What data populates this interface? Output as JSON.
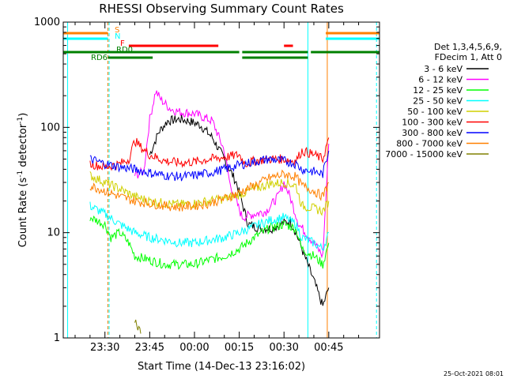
{
  "chart_data": {
    "type": "line",
    "title": "RHESSI Observing Summary Count Rates",
    "xlabel": "Start Time (14-Dec-13 23:16:02)",
    "ylabel_main": "Count Rate (s",
    "ylabel_sup1": "-1",
    "ylabel_mid": " detector",
    "ylabel_sup2": "-1",
    "ylabel_end": ")",
    "y_scale": "log",
    "ylim": [
      1,
      1000
    ],
    "y_ticks": [
      {
        "value": 1,
        "label": "1"
      },
      {
        "value": 10,
        "label": "10"
      },
      {
        "value": 100,
        "label": "100"
      },
      {
        "value": 1000,
        "label": "1000"
      }
    ],
    "x_ticks": [
      {
        "minute": 30,
        "label": "23:30"
      },
      {
        "minute": 45,
        "label": "23:45"
      },
      {
        "minute": 60,
        "label": "00:00"
      },
      {
        "minute": 75,
        "label": "00:15"
      },
      {
        "minute": 90,
        "label": "00:30"
      },
      {
        "minute": 105,
        "label": "00:45"
      }
    ],
    "xlim_minutes": [
      16.03,
      122
    ],
    "legend_header": [
      "Det 1,3,4,5,6,9,",
      "FDecim 1, Att 0"
    ],
    "series": [
      {
        "name": "3 - 6 keV",
        "color": "#000000",
        "points": [
          [
            38,
            0
          ],
          [
            42,
            0
          ],
          [
            45,
            55
          ],
          [
            48,
            90
          ],
          [
            51,
            115
          ],
          [
            55,
            120
          ],
          [
            58,
            115
          ],
          [
            62,
            105
          ],
          [
            66,
            80
          ],
          [
            70,
            50
          ],
          [
            74,
            30
          ],
          [
            78,
            12
          ],
          [
            82,
            11
          ],
          [
            86,
            11
          ],
          [
            89,
            12
          ],
          [
            92,
            13
          ],
          [
            94,
            10
          ],
          [
            96,
            7
          ],
          [
            100,
            3.5
          ],
          [
            103,
            2
          ],
          [
            105,
            3
          ]
        ]
      },
      {
        "name": "6 - 12 keV",
        "color": "#ff00ff",
        "points": [
          [
            40,
            35
          ],
          [
            43,
            38
          ],
          [
            45,
            120
          ],
          [
            47,
            220
          ],
          [
            49,
            180
          ],
          [
            52,
            150
          ],
          [
            55,
            140
          ],
          [
            60,
            135
          ],
          [
            66,
            115
          ],
          [
            70,
            60
          ],
          [
            72,
            28
          ],
          [
            76,
            14
          ],
          [
            80,
            15
          ],
          [
            84,
            16
          ],
          [
            88,
            22
          ],
          [
            90,
            30
          ],
          [
            92,
            22
          ],
          [
            95,
            12
          ],
          [
            100,
            8
          ],
          [
            103,
            6
          ],
          [
            105,
            70
          ]
        ]
      },
      {
        "name": "12 - 25 keV",
        "color": "#00ff00",
        "points": [
          [
            25,
            14
          ],
          [
            30,
            12
          ],
          [
            32,
            9
          ],
          [
            35,
            10
          ],
          [
            38,
            8
          ],
          [
            40,
            6
          ],
          [
            45,
            5.5
          ],
          [
            50,
            5
          ],
          [
            55,
            5
          ],
          [
            60,
            5
          ],
          [
            65,
            5.5
          ],
          [
            70,
            6
          ],
          [
            75,
            7
          ],
          [
            80,
            9
          ],
          [
            85,
            11
          ],
          [
            90,
            12
          ],
          [
            94,
            11
          ],
          [
            96,
            7
          ],
          [
            100,
            6
          ],
          [
            103,
            5
          ],
          [
            105,
            8
          ]
        ]
      },
      {
        "name": "25 - 50 keV",
        "color": "#00ffff",
        "points": [
          [
            25,
            18
          ],
          [
            30,
            15
          ],
          [
            35,
            12
          ],
          [
            40,
            10
          ],
          [
            45,
            9
          ],
          [
            50,
            8.5
          ],
          [
            55,
            8
          ],
          [
            60,
            8
          ],
          [
            65,
            8.5
          ],
          [
            70,
            9
          ],
          [
            75,
            10
          ],
          [
            80,
            11.5
          ],
          [
            85,
            13
          ],
          [
            90,
            14
          ],
          [
            94,
            12
          ],
          [
            96,
            9
          ],
          [
            100,
            8
          ],
          [
            103,
            7
          ],
          [
            105,
            10
          ]
        ]
      },
      {
        "name": "50 - 100 keV",
        "color": "#d0d000",
        "points": [
          [
            25,
            35
          ],
          [
            30,
            30
          ],
          [
            35,
            26
          ],
          [
            40,
            22
          ],
          [
            45,
            20
          ],
          [
            50,
            19
          ],
          [
            55,
            18.5
          ],
          [
            60,
            19
          ],
          [
            65,
            20
          ],
          [
            70,
            21
          ],
          [
            75,
            23
          ],
          [
            80,
            26
          ],
          [
            85,
            29
          ],
          [
            90,
            30
          ],
          [
            94,
            28
          ],
          [
            96,
            18
          ],
          [
            100,
            17
          ],
          [
            103,
            16
          ],
          [
            105,
            20
          ]
        ]
      },
      {
        "name": "100 - 300 keV",
        "color": "#ff0000",
        "points": [
          [
            25,
            45
          ],
          [
            30,
            42
          ],
          [
            35,
            45
          ],
          [
            38,
            50
          ],
          [
            40,
            75
          ],
          [
            42,
            65
          ],
          [
            45,
            55
          ],
          [
            50,
            48
          ],
          [
            55,
            46
          ],
          [
            60,
            47
          ],
          [
            65,
            50
          ],
          [
            70,
            52
          ],
          [
            75,
            55
          ],
          [
            77,
            45
          ],
          [
            80,
            48
          ],
          [
            85,
            50
          ],
          [
            90,
            50
          ],
          [
            94,
            48
          ],
          [
            96,
            60
          ],
          [
            100,
            55
          ],
          [
            103,
            50
          ],
          [
            105,
            80
          ]
        ]
      },
      {
        "name": "300 - 800 keV",
        "color": "#0000ff",
        "points": [
          [
            25,
            50
          ],
          [
            30,
            45
          ],
          [
            35,
            42
          ],
          [
            40,
            40
          ],
          [
            45,
            37
          ],
          [
            50,
            35
          ],
          [
            55,
            34
          ],
          [
            60,
            35
          ],
          [
            65,
            37
          ],
          [
            70,
            40
          ],
          [
            75,
            44
          ],
          [
            80,
            47
          ],
          [
            85,
            50
          ],
          [
            90,
            48
          ],
          [
            94,
            45
          ],
          [
            96,
            40
          ],
          [
            100,
            38
          ],
          [
            103,
            36
          ],
          [
            105,
            60
          ]
        ]
      },
      {
        "name": "800 - 7000 keV",
        "color": "#ff8000",
        "points": [
          [
            25,
            28
          ],
          [
            30,
            25
          ],
          [
            35,
            22
          ],
          [
            40,
            20
          ],
          [
            45,
            19
          ],
          [
            50,
            18
          ],
          [
            55,
            17.5
          ],
          [
            60,
            18
          ],
          [
            65,
            19
          ],
          [
            70,
            21
          ],
          [
            75,
            24
          ],
          [
            80,
            28
          ],
          [
            85,
            33
          ],
          [
            90,
            36
          ],
          [
            94,
            34
          ],
          [
            96,
            28
          ],
          [
            100,
            25
          ],
          [
            103,
            22
          ],
          [
            105,
            30
          ]
        ]
      },
      {
        "name": "7000 - 15000 keV",
        "color": "#808000",
        "points": [
          [
            40,
            1.5
          ],
          [
            41,
            1.2
          ],
          [
            42,
            1.1
          ]
        ]
      }
    ],
    "status_bars": [
      {
        "label": "S",
        "color": "#ff8000",
        "segments": [
          [
            16.03,
            31
          ],
          [
            104,
            122
          ]
        ]
      },
      {
        "label": "N",
        "color": "#00ffff",
        "segments": [
          [
            16.03,
            31
          ],
          [
            104,
            122
          ]
        ]
      },
      {
        "label": "F",
        "color": "#ff0000",
        "segments": [
          [
            38,
            68
          ],
          [
            90,
            93
          ]
        ]
      },
      {
        "label": "RD0",
        "color": "#008000",
        "segments": [
          [
            16.03,
            75
          ],
          [
            76,
            98
          ],
          [
            99,
            122
          ]
        ]
      },
      {
        "label": "RD6",
        "color": "#008000",
        "segments": [
          [
            31,
            46
          ],
          [
            76,
            98
          ]
        ]
      }
    ],
    "vertical_lines": [
      {
        "minute": 17.5,
        "color": "#00ffff",
        "style": "solid"
      },
      {
        "minute": 31,
        "color": "#ff8000",
        "style": "dashed"
      },
      {
        "minute": 31.4,
        "color": "#00ffff",
        "style": "dashed"
      },
      {
        "minute": 98,
        "color": "#00ffff",
        "style": "solid"
      },
      {
        "minute": 104.5,
        "color": "#ff8000",
        "style": "solid"
      },
      {
        "minute": 121,
        "color": "#00ffff",
        "style": "dashed"
      }
    ],
    "legend_placement": "right",
    "grid": false
  },
  "footer_timestamp": "25-Oct-2021 08:01"
}
